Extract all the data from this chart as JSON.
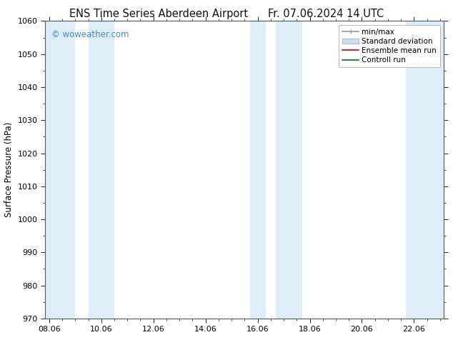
{
  "title_left": "ENS Time Series Aberdeen Airport",
  "title_right": "Fr. 07.06.2024 14 UTC",
  "ylabel": "Surface Pressure (hPa)",
  "ylim": [
    970,
    1060
  ],
  "yticks": [
    970,
    980,
    990,
    1000,
    1010,
    1020,
    1030,
    1040,
    1050,
    1060
  ],
  "xtick_labels": [
    "08.06",
    "10.06",
    "12.06",
    "14.06",
    "16.06",
    "18.06",
    "20.06",
    "22.06"
  ],
  "xtick_positions": [
    0,
    2,
    4,
    6,
    8,
    10,
    12,
    14
  ],
  "xmin": -0.15,
  "xmax": 15.15,
  "watermark": "© woweather.com",
  "watermark_color": "#4488cc",
  "background_color": "#ffffff",
  "plot_bg_color": "#ffffff",
  "shaded_bands": [
    {
      "x_start": -0.15,
      "x_end": 1.0,
      "color": "#ddeef8"
    },
    {
      "x_start": 1.5,
      "x_end": 2.5,
      "color": "#ddeef8"
    },
    {
      "x_start": 7.7,
      "x_end": 8.3,
      "color": "#ddeef8"
    },
    {
      "x_start": 8.7,
      "x_end": 9.7,
      "color": "#ddeef8"
    },
    {
      "x_start": 13.7,
      "x_end": 15.15,
      "color": "#ddeef8"
    }
  ],
  "legend_entries": [
    {
      "label": "min/max",
      "type": "minmax",
      "color": "#999999"
    },
    {
      "label": "Standard deviation",
      "type": "fill",
      "facecolor": "#cce0f0",
      "edgecolor": "#aabbcc"
    },
    {
      "label": "Ensemble mean run",
      "type": "line",
      "color": "#cc0000"
    },
    {
      "label": "Controll run",
      "type": "line",
      "color": "#007700"
    }
  ],
  "title_fontsize": 10.5,
  "axis_label_fontsize": 8.5,
  "tick_fontsize": 8,
  "legend_fontsize": 7.5,
  "spine_color": "#555555",
  "grid_color": "#dddddd"
}
